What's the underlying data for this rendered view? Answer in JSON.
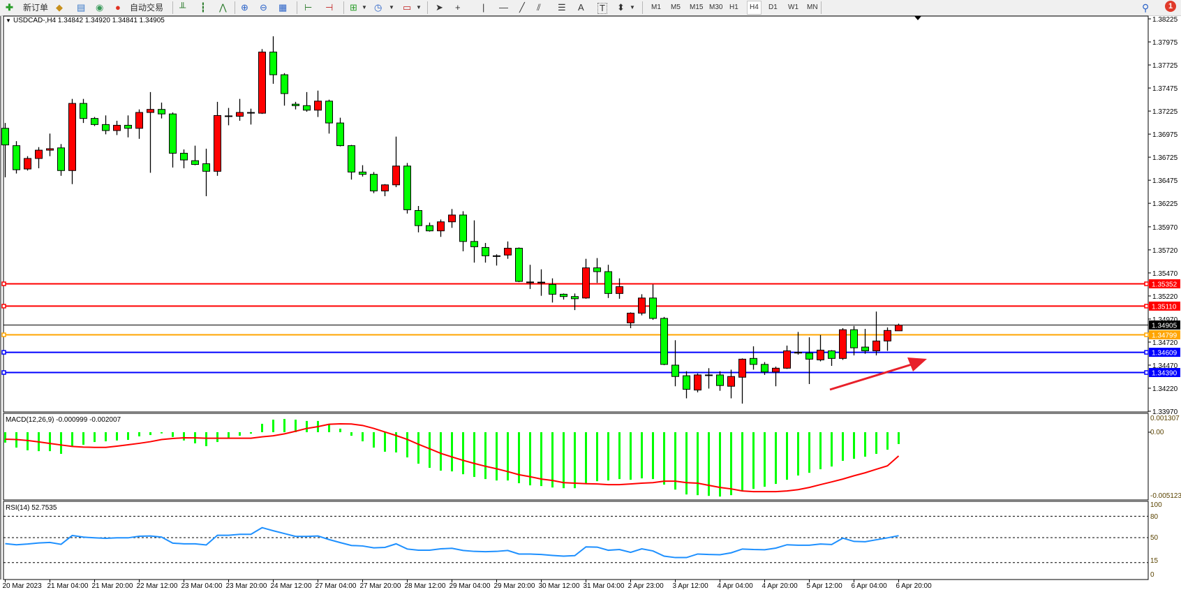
{
  "toolbar": {
    "new_order_label": "新订单",
    "auto_trading_label": "自动交易",
    "timeframes": [
      "M1",
      "M5",
      "M15",
      "M30",
      "H1",
      "H4",
      "D1",
      "W1",
      "MN"
    ],
    "active_timeframe": "H4",
    "notification_count": "1",
    "icons": [
      "new-order-icon",
      "gold-bars-icon",
      "market-watch-icon",
      "signals-icon",
      "auto-trading-icon",
      "bar-chart-icon",
      "candlestick-icon",
      "line-chart-icon",
      "zoom-in-icon",
      "zoom-out-icon",
      "tile-windows-icon",
      "chart-shift-icon",
      "autoscroll-icon",
      "indicators-icon",
      "periods-clock-icon",
      "templates-icon",
      "cursor-icon",
      "crosshair-icon",
      "vertical-line-icon",
      "horizontal-line-icon",
      "trendline-icon",
      "equidistant-channel-icon",
      "fibonacci-icon",
      "text-icon",
      "text-label-icon",
      "arrows-icon",
      "search-icon",
      "notification-icon"
    ]
  },
  "chart": {
    "title": "USDCAD-,H4  1.34842 1.34920 1.34841 1.34905",
    "price_axis": [
      "1.38225",
      "1.37975",
      "1.37725",
      "1.37475",
      "1.37225",
      "1.36975",
      "1.36725",
      "1.36475",
      "1.36225",
      "1.35970",
      "1.35720",
      "1.35470",
      "1.35220",
      "1.34970",
      "1.34720",
      "1.34470",
      "1.34220",
      "1.33970"
    ],
    "levels": [
      {
        "price": "1.35352",
        "color": "#ff0000"
      },
      {
        "price": "1.35110",
        "color": "#ff0000"
      },
      {
        "price": "1.34799",
        "color": "#ffa500"
      },
      {
        "price": "1.34609",
        "color": "#0000ff"
      },
      {
        "price": "1.34390",
        "color": "#0000ff"
      }
    ],
    "bid": {
      "price": "1.34905",
      "color": "#000000"
    },
    "bull_color": "#ff0000",
    "bear_color": "#00ff00",
    "annotation_arrow_color": "#e8202a",
    "time_axis": [
      "20 Mar 2023",
      "21 Mar 04:00",
      "21 Mar 20:00",
      "22 Mar 12:00",
      "23 Mar 04:00",
      "23 Mar 20:00",
      "24 Mar 12:00",
      "27 Mar 04:00",
      "27 Mar 20:00",
      "28 Mar 12:00",
      "29 Mar 04:00",
      "29 Mar 20:00",
      "30 Mar 12:00",
      "31 Mar 04:00",
      "2 Apr 23:00",
      "3 Apr 12:00",
      "4 Apr 04:00",
      "4 Apr 20:00",
      "5 Apr 12:00",
      "6 Apr 04:00",
      "6 Apr 20:00"
    ]
  },
  "macd": {
    "label": "MACD(12,26,9) -0.000999 -0.002007",
    "axis": [
      "0.001307",
      "0.00",
      "-0.005123"
    ],
    "histogram_color": "#00ff00",
    "signal_color": "#ff0000"
  },
  "rsi": {
    "label": "RSI(14) 52.7535",
    "axis": [
      "100",
      "80",
      "50",
      "15",
      "0"
    ],
    "levels": [
      80,
      50,
      15
    ],
    "line_color": "#1e90ff"
  },
  "chart_data": [
    {
      "type": "candlestick",
      "symbol": "USDCAD-",
      "timeframe": "H4",
      "ylim": [
        1.3397,
        1.38225
      ],
      "ohlc": [
        [
          1.37038,
          1.37096,
          1.36507,
          1.36858
        ],
        [
          1.3685,
          1.36899,
          1.36548,
          1.36589
        ],
        [
          1.36597,
          1.36736,
          1.3658,
          1.36711
        ],
        [
          1.36711,
          1.36834,
          1.36605,
          1.36801
        ],
        [
          1.36801,
          1.36981,
          1.36736,
          1.36817
        ],
        [
          1.36826,
          1.36867,
          1.36523,
          1.3658
        ],
        [
          1.3658,
          1.37357,
          1.36433,
          1.37308
        ],
        [
          1.37308,
          1.37357,
          1.37096,
          1.37145
        ],
        [
          1.37145,
          1.37161,
          1.37063,
          1.37079
        ],
        [
          1.37079,
          1.37178,
          1.36973,
          1.37014
        ],
        [
          1.37014,
          1.3712,
          1.36965,
          1.37071
        ],
        [
          1.37071,
          1.37178,
          1.3694,
          1.37038
        ],
        [
          1.37038,
          1.37243,
          1.36924,
          1.3721
        ],
        [
          1.3721,
          1.37431,
          1.36556,
          1.37243
        ],
        [
          1.37243,
          1.37317,
          1.37145,
          1.37194
        ],
        [
          1.37194,
          1.3721,
          1.36613,
          1.36768
        ],
        [
          1.36768,
          1.36809,
          1.36605,
          1.36695
        ],
        [
          1.36687,
          1.3685,
          1.36638,
          1.36646
        ],
        [
          1.36654,
          1.36817,
          1.36302,
          1.36572
        ],
        [
          1.36572,
          1.37325,
          1.36523,
          1.37177
        ],
        [
          1.37169,
          1.37259,
          1.37071,
          1.37173
        ],
        [
          1.37169,
          1.37357,
          1.3712,
          1.3721
        ],
        [
          1.37206,
          1.37251,
          1.37079,
          1.3721
        ],
        [
          1.37202,
          1.37897,
          1.37194,
          1.37865
        ],
        [
          1.37865,
          1.38036,
          1.37521,
          1.37619
        ],
        [
          1.37619,
          1.37636,
          1.37284,
          1.37415
        ],
        [
          1.373,
          1.37325,
          1.37243,
          1.37284
        ],
        [
          1.37284,
          1.37431,
          1.37218,
          1.37235
        ],
        [
          1.37235,
          1.37447,
          1.37161,
          1.37333
        ],
        [
          1.37333,
          1.37349,
          1.36981,
          1.37096
        ],
        [
          1.37096,
          1.37153,
          1.36842,
          1.3685
        ],
        [
          1.3685,
          1.36858,
          1.36482,
          1.36564
        ],
        [
          1.36564,
          1.36638,
          1.36515,
          1.36539
        ],
        [
          1.36539,
          1.36564,
          1.36335,
          1.36359
        ],
        [
          1.36359,
          1.36433,
          1.36302,
          1.36425
        ],
        [
          1.36425,
          1.36948,
          1.364,
          1.36629
        ],
        [
          1.36629,
          1.36662,
          1.36114,
          1.36155
        ],
        [
          1.36147,
          1.36196,
          1.3591,
          1.35983
        ],
        [
          1.35983,
          1.36016,
          1.35918,
          1.35926
        ],
        [
          1.35926,
          1.36049,
          1.35861,
          1.36024
        ],
        [
          1.36024,
          1.36163,
          1.35959,
          1.36098
        ],
        [
          1.36098,
          1.36139,
          1.35705,
          1.35811
        ],
        [
          1.35811,
          1.3604,
          1.35582,
          1.35754
        ],
        [
          1.35746,
          1.35795,
          1.35582,
          1.35656
        ],
        [
          1.35656,
          1.35672,
          1.3555,
          1.35652
        ],
        [
          1.35664,
          1.35811,
          1.35623,
          1.35738
        ],
        [
          1.35738,
          1.35746,
          1.3537,
          1.35378
        ],
        [
          1.35372,
          1.35558,
          1.35296,
          1.3537
        ],
        [
          1.3537,
          1.35509,
          1.35222,
          1.35368
        ],
        [
          1.35345,
          1.35411,
          1.35149,
          1.35239
        ],
        [
          1.35239,
          1.35247,
          1.35181,
          1.35214
        ],
        [
          1.35214,
          1.35247,
          1.35067,
          1.3519
        ],
        [
          1.35198,
          1.35623,
          1.3519,
          1.35525
        ],
        [
          1.35525,
          1.35631,
          1.35362,
          1.35484
        ],
        [
          1.35484,
          1.35558,
          1.35198,
          1.35247
        ],
        [
          1.35247,
          1.35411,
          1.3519,
          1.35321
        ],
        [
          1.34928,
          1.35042,
          1.34871,
          1.35034
        ],
        [
          1.35034,
          1.35239,
          1.3501,
          1.35198
        ],
        [
          1.35198,
          1.35345,
          1.34961,
          1.34977
        ],
        [
          1.34977,
          1.34993,
          1.3447,
          1.34478
        ],
        [
          1.3447,
          1.3474,
          1.34241,
          1.34347
        ],
        [
          1.34355,
          1.34404,
          1.3411,
          1.34208
        ],
        [
          1.342,
          1.3438,
          1.34175,
          1.34364
        ],
        [
          1.3436,
          1.34437,
          1.34216,
          1.34364
        ],
        [
          1.34364,
          1.34404,
          1.34192,
          1.34249
        ],
        [
          1.34241,
          1.34421,
          1.3411,
          1.34347
        ],
        [
          1.34339,
          1.34543,
          1.34053,
          1.34535
        ],
        [
          1.34543,
          1.34674,
          1.34421,
          1.34478
        ],
        [
          1.34478,
          1.34503,
          1.34364,
          1.34396
        ],
        [
          1.34396,
          1.34454,
          1.34241,
          1.34437
        ],
        [
          1.34437,
          1.34682,
          1.34429,
          1.34625
        ],
        [
          1.34601,
          1.3483,
          1.34584,
          1.34609
        ],
        [
          1.34601,
          1.34772,
          1.34265,
          1.34535
        ],
        [
          1.34527,
          1.34797,
          1.34511,
          1.34633
        ],
        [
          1.34625,
          1.34633,
          1.34462,
          1.34543
        ],
        [
          1.34543,
          1.34871,
          1.34527,
          1.34854
        ],
        [
          1.34854,
          1.34895,
          1.34576,
          1.34658
        ],
        [
          1.34666,
          1.34863,
          1.34593,
          1.34625
        ],
        [
          1.34625,
          1.35051,
          1.34576,
          1.34732
        ],
        [
          1.34732,
          1.34879,
          1.34625,
          1.34846
        ],
        [
          1.34842,
          1.3492,
          1.34841,
          1.34905
        ]
      ]
    },
    {
      "type": "bar",
      "title": "MACD(12,26,9)",
      "ylim": [
        -0.005123,
        0.001307
      ],
      "macd": [
        -0.00088,
        -0.0013,
        -0.00153,
        -0.0016,
        -0.0016,
        -0.00183,
        -0.00124,
        -0.00106,
        -0.00083,
        -0.00077,
        -0.0007,
        -0.00065,
        -0.00035,
        -0.00024,
        -0.0001,
        -0.0004,
        -0.0007,
        -0.00094,
        -0.00118,
        -0.00083,
        -0.00047,
        -0.0003,
        -0.00012,
        0.00071,
        0.00106,
        0.00112,
        0.00106,
        0.00095,
        0.00095,
        0.00071,
        0.0003,
        -0.0003,
        -0.00077,
        -0.0013,
        -0.00165,
        -0.00171,
        -0.00213,
        -0.00266,
        -0.00301,
        -0.00325,
        -0.00331,
        -0.00355,
        -0.00378,
        -0.00396,
        -0.00408,
        -0.00408,
        -0.00431,
        -0.00449,
        -0.00455,
        -0.00467,
        -0.00473,
        -0.00473,
        -0.00431,
        -0.00414,
        -0.00408,
        -0.00396,
        -0.00402,
        -0.0039,
        -0.00396,
        -0.00443,
        -0.00485,
        -0.00526,
        -0.00532,
        -0.00538,
        -0.00544,
        -0.00532,
        -0.00496,
        -0.00479,
        -0.00461,
        -0.00437,
        -0.00402,
        -0.00366,
        -0.00343,
        -0.00313,
        -0.0029,
        -0.00242,
        -0.00225,
        -0.00207,
        -0.00183,
        -0.00148,
        -0.000999
      ],
      "signal": [
        -0.00059,
        -0.00062,
        -0.0007,
        -0.00082,
        -0.00095,
        -0.00108,
        -0.0012,
        -0.00126,
        -0.00128,
        -0.00128,
        -0.00118,
        -0.00106,
        -0.00094,
        -0.0008,
        -0.00062,
        -0.00053,
        -0.00047,
        -0.00048,
        -0.00051,
        -0.00051,
        -0.00051,
        -0.00051,
        -0.00051,
        -0.00039,
        -0.0003,
        -0.00014,
        8e-05,
        0.00032,
        0.00047,
        0.00067,
        0.00071,
        0.00069,
        0.00057,
        0.00032,
        2e-05,
        -0.00028,
        -0.00061,
        -0.00102,
        -0.0014,
        -0.00179,
        -0.00209,
        -0.00238,
        -0.00264,
        -0.00288,
        -0.00309,
        -0.00333,
        -0.00359,
        -0.00376,
        -0.00396,
        -0.00408,
        -0.00426,
        -0.00431,
        -0.00435,
        -0.00437,
        -0.00443,
        -0.00443,
        -0.00437,
        -0.00431,
        -0.00426,
        -0.00414,
        -0.00414,
        -0.00426,
        -0.00431,
        -0.00449,
        -0.00467,
        -0.00479,
        -0.00496,
        -0.00502,
        -0.00502,
        -0.00502,
        -0.00496,
        -0.00485,
        -0.00467,
        -0.00443,
        -0.0042,
        -0.00396,
        -0.00368,
        -0.00343,
        -0.00313,
        -0.00284,
        -0.002007
      ]
    },
    {
      "type": "line",
      "title": "RSI(14)",
      "ylim": [
        0,
        100
      ],
      "values": [
        41.5,
        40,
        41,
        42.5,
        43.3,
        40.6,
        53,
        50.7,
        49.7,
        49,
        49.7,
        49.7,
        52,
        52.3,
        50.7,
        42.3,
        41.3,
        41.3,
        39.7,
        53.3,
        53.3,
        54.7,
        54.7,
        64,
        59.7,
        55.7,
        51.7,
        51.7,
        52.3,
        47.3,
        43,
        39,
        38.3,
        35.7,
        36.3,
        41.3,
        34,
        32.3,
        32.3,
        34.3,
        35,
        32,
        30.7,
        30.3,
        30.7,
        32,
        27,
        27,
        26.3,
        25,
        24,
        24.7,
        37,
        36.7,
        32.3,
        33.3,
        29.3,
        34.3,
        31.3,
        24,
        22,
        22,
        27,
        26.3,
        26,
        28.7,
        34,
        33.3,
        33,
        35.3,
        40,
        39.3,
        39.3,
        41,
        40.3,
        49.3,
        44.7,
        44.3,
        47,
        49.7,
        52.75
      ]
    }
  ]
}
